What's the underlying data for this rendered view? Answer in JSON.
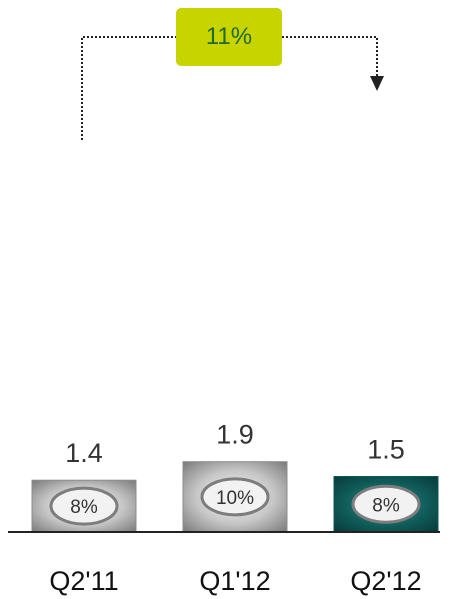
{
  "chart_data": {
    "type": "bar",
    "categories": [
      "Q2'11",
      "Q1'12",
      "Q2'12"
    ],
    "values": [
      1.4,
      1.9,
      1.5
    ],
    "value_labels": [
      "1.4",
      "1.9",
      "1.5"
    ],
    "badges": [
      "8%",
      "10%",
      "8%"
    ],
    "colors": [
      "#8c8c8c",
      "#8c8c8c",
      "#0f5a58"
    ],
    "callout": {
      "label": "11%",
      "from": "Q2'11",
      "to": "Q2'12",
      "color": "#c8d400",
      "text_color": "#1f6b2a"
    },
    "title": "",
    "xlabel": "",
    "ylabel": "",
    "ylim": [
      0,
      1.9
    ],
    "grid": false
  }
}
